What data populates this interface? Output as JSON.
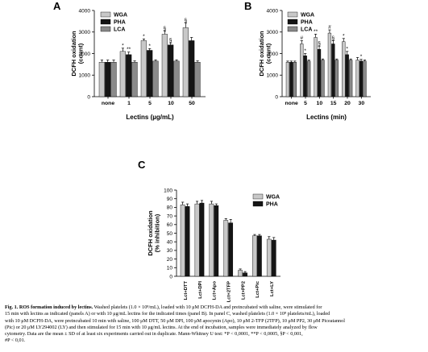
{
  "panels": [
    {
      "letter": "A",
      "chart_data": {
        "type": "bar",
        "ylabel_lines": [
          "DCFH oxidation",
          "(count)"
        ],
        "xlabel": "Lectins (µg/mL)",
        "categories": [
          "none",
          "1",
          "5",
          "10",
          "50"
        ],
        "ylim": [
          0,
          4000
        ],
        "yticks": [
          "0",
          "1000",
          "2000",
          "3000",
          "4000"
        ],
        "ytick_values": [
          0,
          1000,
          2000,
          3000,
          4000
        ],
        "series": [
          {
            "name": "WGA",
            "color": "#c8c8c8",
            "values": [
              1600,
              2100,
              2600,
              2900,
              3200
            ],
            "errors": [
              100,
              150,
              80,
              150,
              220
            ],
            "marks": [
              "",
              "*",
              "*",
              "§",
              "§"
            ]
          },
          {
            "name": "PHA",
            "color": "#151515",
            "values": [
              1600,
              1950,
              2150,
              2400,
              2600
            ],
            "errors": [
              100,
              120,
              80,
              100,
              150
            ],
            "marks": [
              "",
              "**",
              "*",
              "§",
              ""
            ]
          },
          {
            "name": "LCA",
            "color": "#8a8a8a",
            "values": [
              1600,
              1600,
              1650,
              1650,
              1600
            ],
            "errors": [
              100,
              60,
              60,
              60,
              60
            ],
            "marks": [
              "",
              "",
              "",
              "",
              ""
            ]
          }
        ],
        "legend_position": "top-left"
      }
    },
    {
      "letter": "B",
      "chart_data": {
        "type": "bar",
        "ylabel_lines": [
          "DCFH oxidation",
          "(count)"
        ],
        "xlabel": "Lectins (min)",
        "categories": [
          "none",
          "5",
          "10",
          "15",
          "20",
          "30"
        ],
        "ylim": [
          0,
          4000
        ],
        "yticks": [
          "0",
          "1000",
          "2000",
          "3000",
          "4000"
        ],
        "ytick_values": [
          0,
          1000,
          2000,
          3000,
          4000
        ],
        "series": [
          {
            "name": "WGA",
            "color": "#c8c8c8",
            "values": [
              1600,
              2450,
              2750,
              2950,
              2550,
              1700
            ],
            "errors": [
              50,
              150,
              150,
              150,
              150,
              120
            ],
            "marks": [
              "",
              "#",
              "**",
              "#",
              "*",
              ""
            ]
          },
          {
            "name": "PHA",
            "color": "#151515",
            "values": [
              1600,
              1900,
              2200,
              2450,
              1950,
              1650
            ],
            "errors": [
              50,
              100,
              150,
              150,
              150,
              80
            ],
            "marks": [
              "",
              "*",
              "§",
              "§",
              "*",
              "*"
            ]
          },
          {
            "name": "LCA",
            "color": "#8a8a8a",
            "values": [
              1600,
              1650,
              1700,
              1700,
              1700,
              1650
            ],
            "errors": [
              50,
              50,
              50,
              50,
              50,
              50
            ],
            "marks": [
              "",
              "",
              "",
              "",
              "",
              ""
            ]
          }
        ],
        "legend_position": "top-right"
      }
    },
    {
      "letter": "C",
      "chart_data": {
        "type": "bar",
        "ylabel_lines": [
          "DCFH oxidation",
          "(% inhibition)"
        ],
        "xlabel": "",
        "categories": [
          "Lct+DTT",
          "Lct+DPI",
          "Lct+Apo",
          "Lct+2TFP",
          "Lct+PP2",
          "Lct+Pic",
          "Lct+LY"
        ],
        "ylim": [
          0,
          100
        ],
        "yticks": [
          "0",
          "10",
          "20",
          "30",
          "40",
          "50",
          "60",
          "70",
          "80",
          "90",
          "100"
        ],
        "ytick_values": [
          0,
          10,
          20,
          30,
          40,
          50,
          60,
          70,
          80,
          90,
          100
        ],
        "series": [
          {
            "name": "WGA",
            "color": "#c8c8c8",
            "values": [
              83,
              84,
              84,
              65,
              7,
              47,
              43
            ],
            "errors": [
              3,
              3,
              3,
              2,
              1.5,
              1.5,
              3
            ],
            "marks": [
              "",
              "",
              "",
              "",
              "",
              "",
              ""
            ]
          },
          {
            "name": "PHA",
            "color": "#151515",
            "values": [
              81,
              85,
              82,
              62,
              4,
              47,
              42
            ],
            "errors": [
              3,
              3,
              2,
              4,
              1.5,
              1.5,
              3
            ],
            "marks": [
              "",
              "",
              "",
              "",
              "",
              "",
              ""
            ]
          }
        ],
        "legend_position": "top-right"
      }
    }
  ],
  "caption": {
    "lead": "Fig. 1. ROS formation induced by lectins.",
    "lines": [
      " Washed platelets (1.0 × 10⁸/mL), loaded with 10 μM DCFH-DA and preincubated with saline, were stimulated for",
      "15 min with lectins as indicated (panels A) or with 10 μg/mL lectins for the indicated times (panel B). In panel C, washed platelets (1.0 × 10⁸ platelets/mL), loaded",
      "with 10 μM DCFH-DA, were preincubated 10 min with saline, 100 μM DTT, 50 μM DPI, 100 μM apocynin (Apo), 10 μM 2-TFP (2TFP), 10 μM PP2, 30 μM Piceatannol",
      "(Pic) or 20 μM LY294002 (LY) and then stimulated for 15 min with 10 μg/mL lectins. At the end of incubation, samples were immediately analyzed by flow",
      "cytometry. Data are the mean ± SD of at least six experiments carried out in duplicate. Mann-Whitney U test: *P < 0,0001, **P < 0,0005, §P < 0,001,",
      "#P < 0,01."
    ]
  }
}
